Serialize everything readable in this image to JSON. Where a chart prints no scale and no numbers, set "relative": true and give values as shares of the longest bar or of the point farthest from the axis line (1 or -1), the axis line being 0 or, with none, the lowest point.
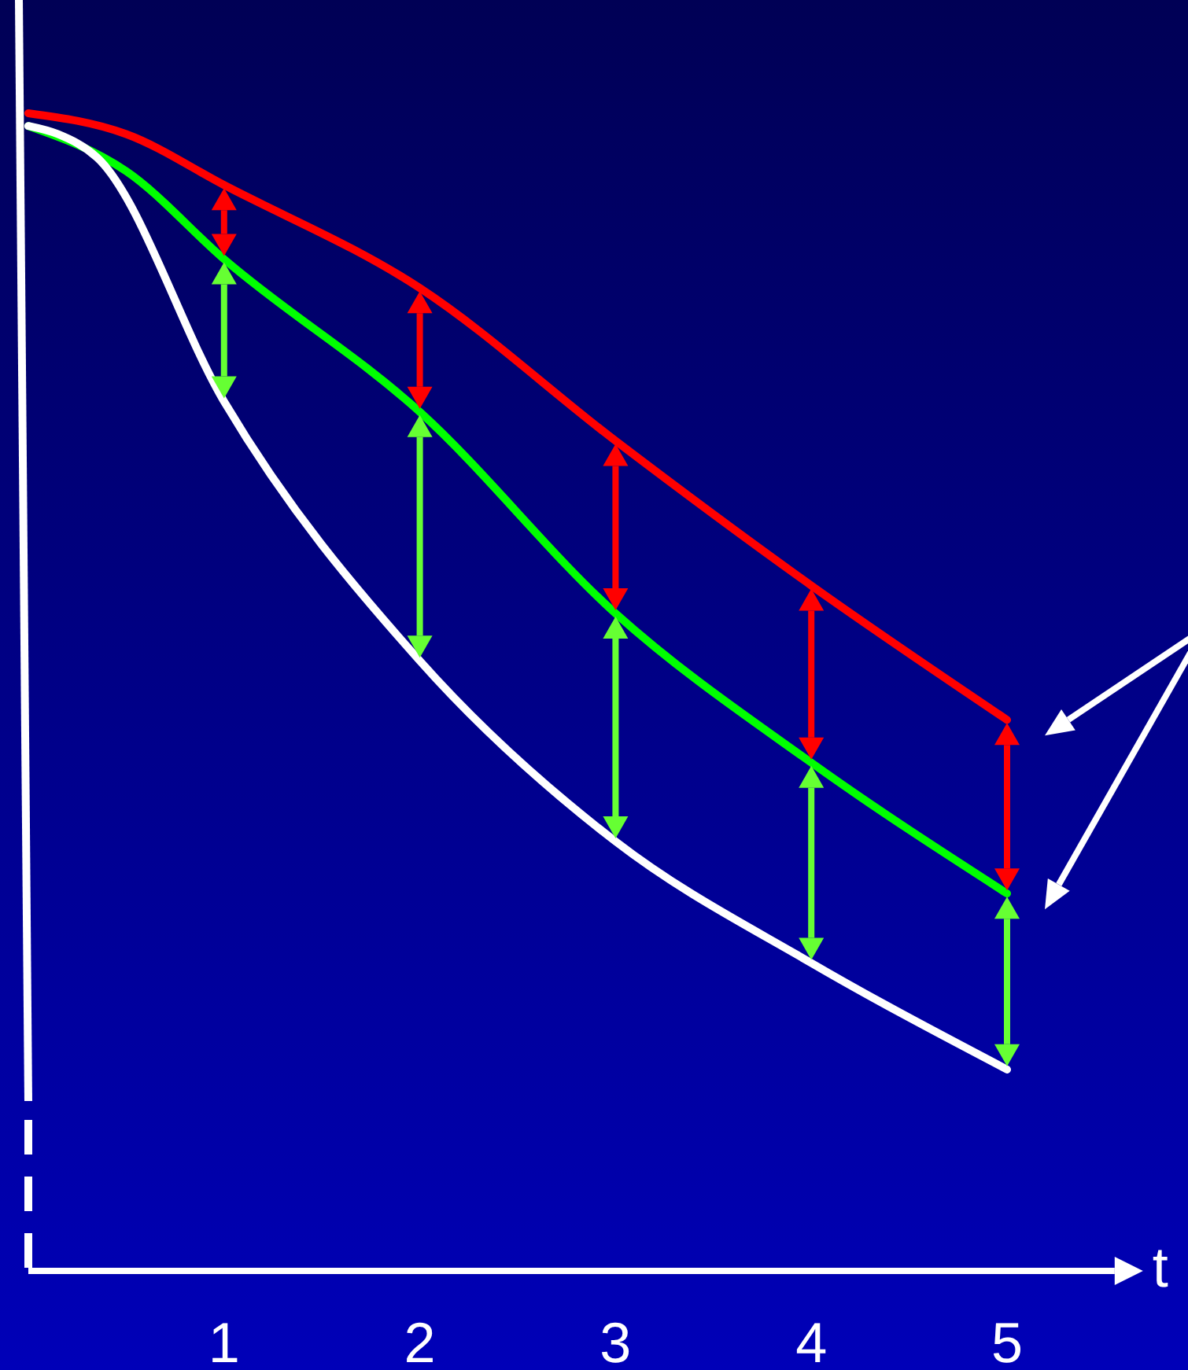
{
  "chart_data": {
    "type": "line",
    "relative": true,
    "xlabel": "t",
    "xlim": [
      0,
      5.55
    ],
    "xticks": [
      1,
      2,
      3,
      4,
      5
    ],
    "grid": false,
    "marker": "none",
    "line_style": "solid",
    "series": [
      {
        "color": "#ff0000",
        "x": [
          0,
          0.5,
          1,
          2,
          3,
          4,
          5
        ],
        "values": [
          1.0,
          0.982,
          0.938,
          0.849,
          0.717,
          0.592,
          0.476
        ]
      },
      {
        "color": "#00ff00",
        "x": [
          0,
          0.5,
          1,
          2,
          3,
          4,
          5
        ],
        "values": [
          0.989,
          0.95,
          0.874,
          0.742,
          0.568,
          0.439,
          0.326
        ]
      },
      {
        "color": "#ffffff",
        "x": [
          0,
          0.15,
          0.35,
          1,
          2,
          3,
          4,
          5
        ],
        "values": [
          0.989,
          0.982,
          0.962,
          0.751,
          0.527,
          0.371,
          0.266,
          0.174
        ]
      }
    ]
  }
}
